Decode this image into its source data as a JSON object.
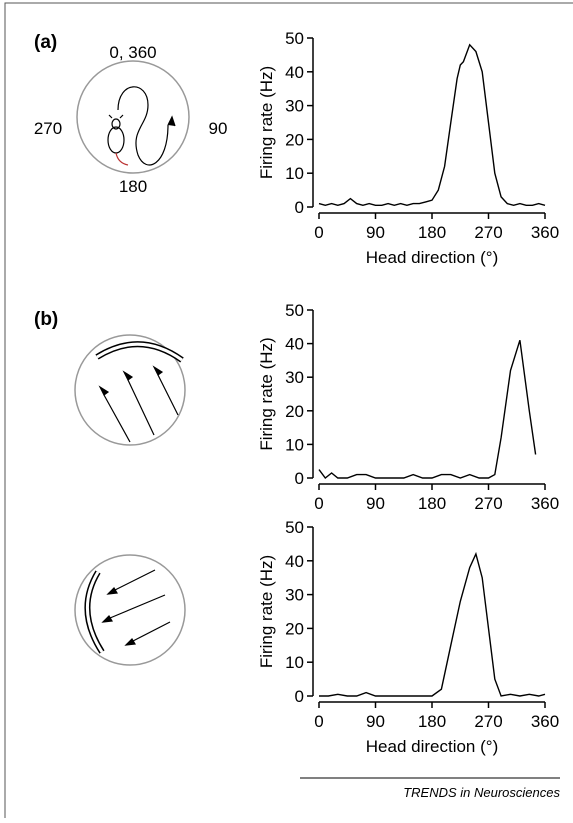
{
  "panels": {
    "a": "(a)",
    "b": "(b)"
  },
  "compass": {
    "top": "0, 360",
    "left": "270",
    "right": "90",
    "bottom": "180"
  },
  "footer": "TRENDS in Neurosciences",
  "chart_data": [
    {
      "type": "line",
      "color": "#000000",
      "x": [
        0,
        10,
        20,
        30,
        40,
        50,
        60,
        70,
        80,
        90,
        100,
        110,
        120,
        130,
        140,
        150,
        160,
        170,
        180,
        190,
        200,
        210,
        220,
        225,
        230,
        240,
        250,
        260,
        270,
        280,
        290,
        300,
        310,
        320,
        330,
        340,
        350,
        360
      ],
      "values": [
        1,
        0.5,
        1,
        0.5,
        1,
        2.5,
        1,
        0.5,
        1,
        0.5,
        0.5,
        1,
        0.5,
        1,
        0.5,
        1,
        1,
        1.5,
        2,
        5,
        12,
        25,
        38,
        42,
        43,
        48,
        46,
        40,
        25,
        10,
        3,
        1,
        0.5,
        1,
        0.5,
        0.5,
        1,
        0.5
      ],
      "xlim": [
        0,
        360
      ],
      "ylim": [
        0,
        50
      ],
      "xticks": [
        0,
        90,
        180,
        270,
        360
      ],
      "yticks": [
        0,
        10,
        20,
        30,
        40,
        50
      ],
      "xlabel": "Head direction (°)",
      "ylabel": "Firing rate (Hz)"
    },
    {
      "type": "line",
      "color": "#000000",
      "x": [
        0,
        10,
        20,
        30,
        45,
        60,
        75,
        90,
        105,
        120,
        135,
        150,
        165,
        180,
        195,
        210,
        225,
        240,
        255,
        270,
        280,
        290,
        305,
        320,
        335,
        345
      ],
      "values": [
        2.5,
        0,
        1.5,
        0,
        0,
        1,
        1,
        0,
        0,
        0,
        0,
        1,
        0,
        0,
        1,
        1,
        0,
        1,
        0,
        0,
        1,
        12,
        32,
        41,
        20,
        7
      ],
      "xlim": [
        0,
        360
      ],
      "ylim": [
        0,
        50
      ],
      "xticks": [
        0,
        90,
        180,
        270,
        360
      ],
      "yticks": [
        0,
        10,
        20,
        30,
        40,
        50
      ],
      "ylabel": "Firing rate (Hz)"
    },
    {
      "type": "line",
      "color": "#000000",
      "x": [
        0,
        15,
        30,
        45,
        60,
        75,
        90,
        105,
        120,
        135,
        150,
        165,
        180,
        195,
        210,
        225,
        240,
        250,
        260,
        270,
        280,
        290,
        305,
        320,
        335,
        350,
        360
      ],
      "values": [
        0,
        0,
        0.5,
        0,
        0,
        1,
        0,
        0,
        0,
        0,
        0,
        0,
        0,
        2,
        15,
        28,
        38,
        42,
        35,
        20,
        5,
        0,
        0.5,
        0,
        0.5,
        0,
        0.5
      ],
      "xlim": [
        0,
        360
      ],
      "ylim": [
        0,
        50
      ],
      "xticks": [
        0,
        90,
        180,
        270,
        360
      ],
      "yticks": [
        0,
        10,
        20,
        30,
        40,
        50
      ],
      "xlabel": "Head direction (°)",
      "ylabel": "Firing rate (Hz)"
    }
  ]
}
